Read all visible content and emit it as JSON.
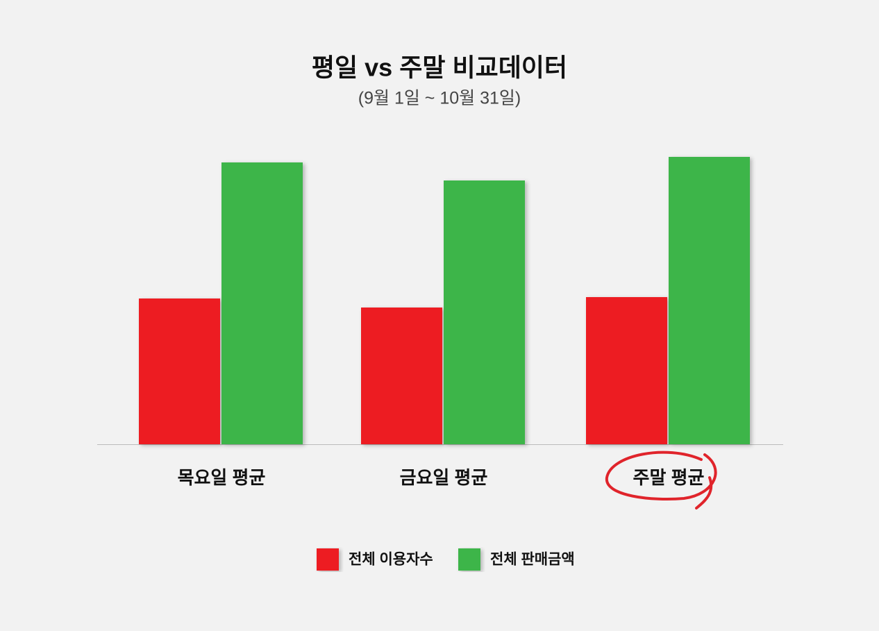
{
  "chart_data": {
    "type": "bar",
    "title": "평일 vs 주말 비교데이터",
    "subtitle": "(9월 1일 ~ 10월 31일)",
    "categories": [
      "목요일 평균",
      "금요일 평균",
      "주말 평균"
    ],
    "series": [
      {
        "name": "전체 이용자수",
        "color": "#ed1c24",
        "values": [
          210,
          197,
          212
        ]
      },
      {
        "name": "전체 판매금액",
        "color": "#3cb54a",
        "values": [
          406,
          380,
          414
        ]
      }
    ],
    "ylim": [
      0,
      450
    ],
    "legend": "bottom"
  }
}
